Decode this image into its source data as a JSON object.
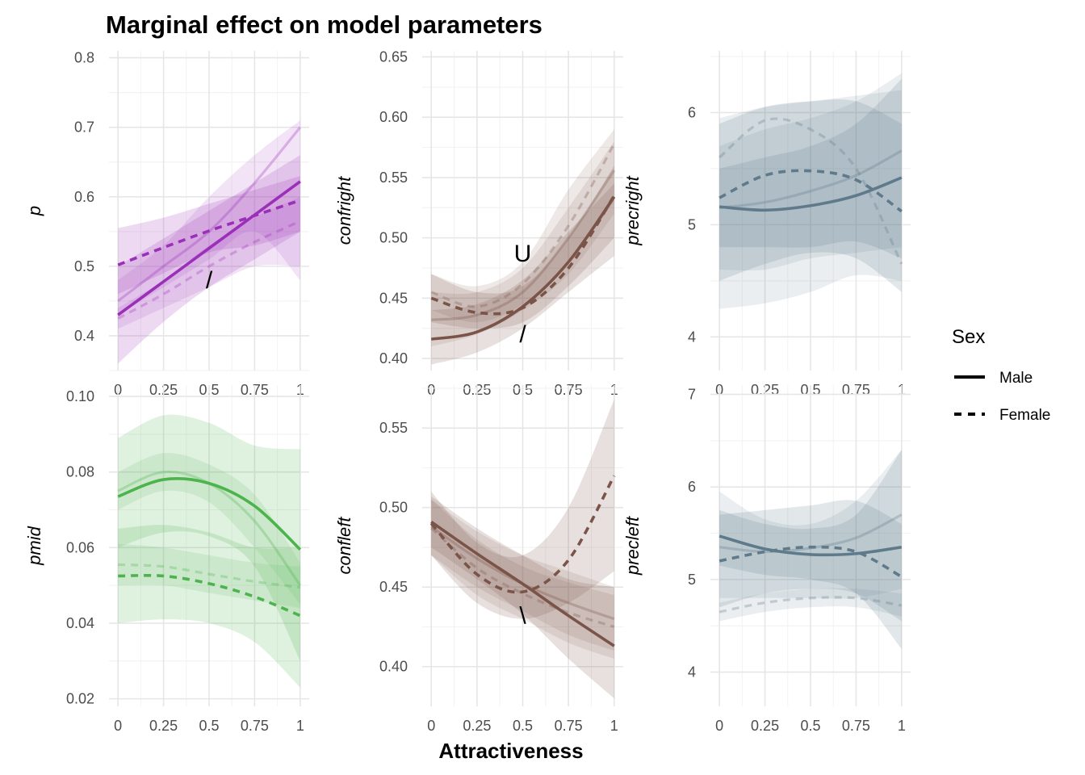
{
  "title": "Marginal effect on model parameters",
  "xlabel": "Attractiveness",
  "legend": {
    "title": "Sex",
    "placement": "right",
    "items": [
      {
        "label": "Male",
        "linetype": "solid"
      },
      {
        "label": "Female",
        "linetype": "dashed"
      }
    ]
  },
  "chart_data": [
    {
      "type": "line",
      "ylabel": "p",
      "color": "#9b30b8",
      "xlim": [
        0,
        1
      ],
      "ylim": [
        0.35,
        0.81
      ],
      "xticks": [
        0,
        0.25,
        0.5,
        0.75,
        1
      ],
      "xtick_labels": [
        "0",
        "0.25",
        "0.5",
        "0.75",
        "1"
      ],
      "yticks": [
        0.4,
        0.5,
        0.6,
        0.7,
        0.8
      ],
      "ytick_labels": [
        "0.4",
        "0.5",
        "0.6",
        "0.7",
        "0.8"
      ],
      "x": [
        0,
        0.25,
        0.5,
        0.75,
        1
      ],
      "annotations": [
        {
          "text": "/",
          "x": 0.5,
          "y": 0.48
        }
      ],
      "series": [
        {
          "name": "Male",
          "linetype": "solid",
          "emphasis": "strong",
          "values": [
            0.43,
            0.478,
            0.526,
            0.574,
            0.622
          ],
          "lower": [
            0.36,
            0.42,
            0.47,
            0.51,
            0.55
          ],
          "upper": [
            0.5,
            0.54,
            0.58,
            0.62,
            0.66
          ]
        },
        {
          "name": "Female",
          "linetype": "dashed",
          "emphasis": "strong",
          "values": [
            0.502,
            0.527,
            0.551,
            0.573,
            0.595
          ],
          "lower": [
            0.46,
            0.49,
            0.52,
            0.53,
            0.55
          ],
          "upper": [
            0.555,
            0.57,
            0.59,
            0.61,
            0.63
          ]
        },
        {
          "name": "Male",
          "linetype": "solid",
          "emphasis": "faint",
          "values": [
            0.45,
            0.5,
            0.55,
            0.62,
            0.7
          ],
          "lower": [
            0.43,
            0.47,
            0.51,
            0.55,
            0.48
          ],
          "upper": [
            0.48,
            0.53,
            0.6,
            0.66,
            0.71
          ]
        },
        {
          "name": "Female",
          "linetype": "dashed",
          "emphasis": "faint",
          "values": [
            0.425,
            0.46,
            0.5,
            0.535,
            0.565
          ],
          "lower": [
            0.41,
            0.44,
            0.47,
            0.5,
            0.5
          ],
          "upper": [
            0.44,
            0.48,
            0.53,
            0.57,
            0.6
          ]
        }
      ]
    },
    {
      "type": "line",
      "ylabel": "confright",
      "color": "#7a5448",
      "xlim": [
        0,
        1
      ],
      "ylim": [
        0.39,
        0.655
      ],
      "xticks": [
        0,
        0.25,
        0.5,
        0.75,
        1
      ],
      "xtick_labels": [
        "0",
        "0.25",
        "0.5",
        "0.75",
        "1"
      ],
      "yticks": [
        0.4,
        0.45,
        0.5,
        0.55,
        0.6,
        0.65
      ],
      "ytick_labels": [
        "0.40",
        "0.45",
        "0.50",
        "0.55",
        "0.60",
        "0.65"
      ],
      "x": [
        0,
        0.25,
        0.5,
        0.75,
        1
      ],
      "annotations": [
        {
          "text": "U",
          "x": 0.5,
          "y": 0.487
        },
        {
          "text": "/",
          "x": 0.5,
          "y": 0.42
        }
      ],
      "series": [
        {
          "name": "Male",
          "linetype": "solid",
          "emphasis": "strong",
          "values": [
            0.416,
            0.422,
            0.443,
            0.48,
            0.534
          ],
          "lower": [
            0.395,
            0.405,
            0.425,
            0.455,
            0.485
          ],
          "upper": [
            0.44,
            0.445,
            0.465,
            0.505,
            0.545
          ]
        },
        {
          "name": "Female",
          "linetype": "dashed",
          "emphasis": "strong",
          "values": [
            0.45,
            0.438,
            0.442,
            0.475,
            0.535
          ],
          "lower": [
            0.43,
            0.425,
            0.43,
            0.46,
            0.5
          ],
          "upper": [
            0.47,
            0.455,
            0.46,
            0.5,
            0.56
          ]
        },
        {
          "name": "Male",
          "linetype": "solid",
          "emphasis": "faint",
          "values": [
            0.432,
            0.436,
            0.455,
            0.5,
            0.556
          ],
          "lower": [
            0.41,
            0.42,
            0.44,
            0.47,
            0.52
          ],
          "upper": [
            0.455,
            0.455,
            0.475,
            0.525,
            0.58
          ]
        },
        {
          "name": "Female",
          "linetype": "dashed",
          "emphasis": "faint",
          "values": [
            0.455,
            0.443,
            0.462,
            0.51,
            0.578
          ],
          "lower": [
            0.44,
            0.43,
            0.445,
            0.48,
            0.53
          ],
          "upper": [
            0.47,
            0.46,
            0.48,
            0.54,
            0.59
          ]
        }
      ]
    },
    {
      "type": "line",
      "ylabel": "precright",
      "color": "#5f7a8a",
      "xlim": [
        0,
        1
      ],
      "ylim": [
        3.7,
        6.55
      ],
      "xticks": [
        0,
        0.25,
        0.5,
        0.75,
        1
      ],
      "xtick_labels": [
        "0",
        "0.25",
        "0.5",
        "0.75",
        "1"
      ],
      "yticks": [
        4,
        5,
        6
      ],
      "ytick_labels": [
        "4",
        "5",
        "6"
      ],
      "x": [
        0,
        0.25,
        0.5,
        0.75,
        1
      ],
      "series": [
        {
          "name": "Male",
          "linetype": "solid",
          "emphasis": "strong",
          "values": [
            5.16,
            5.13,
            5.17,
            5.26,
            5.42
          ],
          "lower": [
            4.8,
            4.8,
            4.8,
            4.85,
            4.7
          ],
          "upper": [
            5.5,
            5.6,
            5.7,
            5.9,
            6.3
          ]
        },
        {
          "name": "Female",
          "linetype": "dashed",
          "emphasis": "strong",
          "values": [
            5.24,
            5.44,
            5.48,
            5.4,
            5.12
          ],
          "lower": [
            4.5,
            4.65,
            4.75,
            4.7,
            4.4
          ],
          "upper": [
            5.9,
            6.05,
            6.1,
            6.1,
            5.9
          ]
        },
        {
          "name": "Male",
          "linetype": "solid",
          "emphasis": "faint",
          "values": [
            5.15,
            5.2,
            5.3,
            5.44,
            5.66
          ],
          "lower": [
            4.6,
            4.6,
            4.7,
            4.75,
            4.8
          ],
          "upper": [
            5.7,
            5.85,
            5.95,
            6.1,
            6.35
          ]
        },
        {
          "name": "Female",
          "linetype": "dashed",
          "emphasis": "faint",
          "values": [
            5.6,
            5.93,
            5.85,
            5.5,
            4.65
          ],
          "lower": [
            4.25,
            4.3,
            4.4,
            4.55,
            4.5
          ],
          "upper": [
            5.95,
            6.05,
            6.1,
            6.15,
            6.2
          ]
        }
      ]
    },
    {
      "type": "line",
      "ylabel": "pmid",
      "color": "#4db34d",
      "xlim": [
        0,
        1
      ],
      "ylim": [
        0.018,
        0.103
      ],
      "xticks": [
        0,
        0.25,
        0.5,
        0.75,
        1
      ],
      "xtick_labels": [
        "0",
        "0.25",
        "0.5",
        "0.75",
        "1"
      ],
      "yticks": [
        0.02,
        0.04,
        0.06,
        0.08,
        0.1
      ],
      "ytick_labels": [
        "0.02",
        "0.04",
        "0.06",
        "0.08",
        "0.10"
      ],
      "x": [
        0,
        0.25,
        0.5,
        0.75,
        1
      ],
      "series": [
        {
          "name": "Male",
          "linetype": "solid",
          "emphasis": "strong",
          "values": [
            0.0735,
            0.078,
            0.077,
            0.071,
            0.0595
          ],
          "lower": [
            0.06,
            0.064,
            0.063,
            0.055,
            0.03
          ],
          "upper": [
            0.089,
            0.095,
            0.093,
            0.087,
            0.086
          ]
        },
        {
          "name": "Female",
          "linetype": "dashed",
          "emphasis": "strong",
          "values": [
            0.0525,
            0.0525,
            0.0505,
            0.047,
            0.042
          ],
          "lower": [
            0.04,
            0.041,
            0.04,
            0.035,
            0.023
          ],
          "upper": [
            0.065,
            0.066,
            0.064,
            0.06,
            0.06
          ]
        },
        {
          "name": "Male",
          "linetype": "solid",
          "emphasis": "faint",
          "values": [
            0.075,
            0.08,
            0.077,
            0.067,
            0.05
          ],
          "lower": [
            0.07,
            0.075,
            0.072,
            0.06,
            0.045
          ],
          "upper": [
            0.08,
            0.085,
            0.082,
            0.074,
            0.056
          ]
        },
        {
          "name": "Female",
          "linetype": "dashed",
          "emphasis": "faint",
          "values": [
            0.0555,
            0.055,
            0.053,
            0.051,
            0.0495
          ],
          "lower": [
            0.05,
            0.05,
            0.048,
            0.046,
            0.044
          ],
          "upper": [
            0.061,
            0.06,
            0.058,
            0.056,
            0.055
          ]
        }
      ]
    },
    {
      "type": "line",
      "ylabel": "confleft",
      "color": "#7a5448",
      "xlim": [
        0,
        1
      ],
      "ylim": [
        0.375,
        0.577
      ],
      "xticks": [
        0,
        0.25,
        0.5,
        0.75,
        1
      ],
      "xtick_labels": [
        "0",
        "0.25",
        "0.5",
        "0.75",
        "1"
      ],
      "yticks": [
        0.4,
        0.45,
        0.5,
        0.55
      ],
      "ytick_labels": [
        "0.40",
        "0.45",
        "0.50",
        "0.55"
      ],
      "x": [
        0,
        0.25,
        0.5,
        0.75,
        1
      ],
      "annotations": [
        {
          "text": "\\",
          "x": 0.5,
          "y": 0.432
        }
      ],
      "series": [
        {
          "name": "Male",
          "linetype": "solid",
          "emphasis": "strong",
          "values": [
            0.491,
            0.471,
            0.452,
            0.432,
            0.413
          ],
          "lower": [
            0.475,
            0.455,
            0.433,
            0.405,
            0.38
          ],
          "upper": [
            0.507,
            0.487,
            0.47,
            0.455,
            0.45
          ]
        },
        {
          "name": "Female",
          "linetype": "dashed",
          "emphasis": "strong",
          "values": [
            0.49,
            0.458,
            0.447,
            0.467,
            0.52
          ],
          "lower": [
            0.47,
            0.44,
            0.43,
            0.44,
            0.46
          ],
          "upper": [
            0.51,
            0.478,
            0.47,
            0.5,
            0.568
          ]
        },
        {
          "name": "Male",
          "linetype": "solid",
          "emphasis": "faint",
          "values": [
            0.488,
            0.468,
            0.452,
            0.44,
            0.43
          ],
          "lower": [
            0.47,
            0.45,
            0.435,
            0.42,
            0.41
          ],
          "upper": [
            0.505,
            0.485,
            0.47,
            0.46,
            0.45
          ]
        },
        {
          "name": "Female",
          "linetype": "dashed",
          "emphasis": "faint",
          "values": [
            0.487,
            0.462,
            0.446,
            0.434,
            0.425
          ],
          "lower": [
            0.47,
            0.445,
            0.43,
            0.415,
            0.405
          ],
          "upper": [
            0.505,
            0.48,
            0.463,
            0.453,
            0.445
          ]
        }
      ]
    },
    {
      "type": "line",
      "ylabel": "precleft",
      "color": "#5f7a8a",
      "xlim": [
        0,
        1
      ],
      "ylim": [
        3.63,
        7.1
      ],
      "xticks": [
        0,
        0.25,
        0.5,
        0.75,
        1
      ],
      "xtick_labels": [
        "0",
        "0.25",
        "0.5",
        "0.75",
        "1"
      ],
      "yticks": [
        4,
        5,
        6,
        7
      ],
      "ytick_labels": [
        "4",
        "5",
        "6",
        "7"
      ],
      "x": [
        0,
        0.25,
        0.5,
        0.75,
        1
      ],
      "series": [
        {
          "name": "Male",
          "linetype": "solid",
          "emphasis": "strong",
          "values": [
            5.47,
            5.33,
            5.27,
            5.28,
            5.35
          ],
          "lower": [
            5.15,
            5.05,
            5.0,
            4.85,
            4.25
          ],
          "upper": [
            5.75,
            5.6,
            5.55,
            5.7,
            6.4
          ]
        },
        {
          "name": "Female",
          "linetype": "dashed",
          "emphasis": "strong",
          "values": [
            5.2,
            5.3,
            5.35,
            5.3,
            5.03
          ],
          "lower": [
            4.7,
            4.85,
            4.9,
            4.85,
            4.55
          ],
          "upper": [
            5.7,
            5.75,
            5.8,
            5.85,
            5.6
          ]
        },
        {
          "name": "Male",
          "linetype": "solid",
          "emphasis": "faint",
          "values": [
            5.35,
            5.3,
            5.34,
            5.45,
            5.7
          ],
          "lower": [
            4.8,
            4.8,
            4.8,
            4.8,
            4.9
          ],
          "upper": [
            5.95,
            5.65,
            5.6,
            5.85,
            6.4
          ]
        },
        {
          "name": "Female",
          "linetype": "dashed",
          "emphasis": "faint",
          "values": [
            4.65,
            4.75,
            4.8,
            4.8,
            4.72
          ],
          "lower": [
            4.55,
            4.65,
            4.7,
            4.7,
            4.6
          ],
          "upper": [
            4.75,
            4.85,
            4.9,
            4.9,
            4.85
          ]
        }
      ]
    }
  ]
}
